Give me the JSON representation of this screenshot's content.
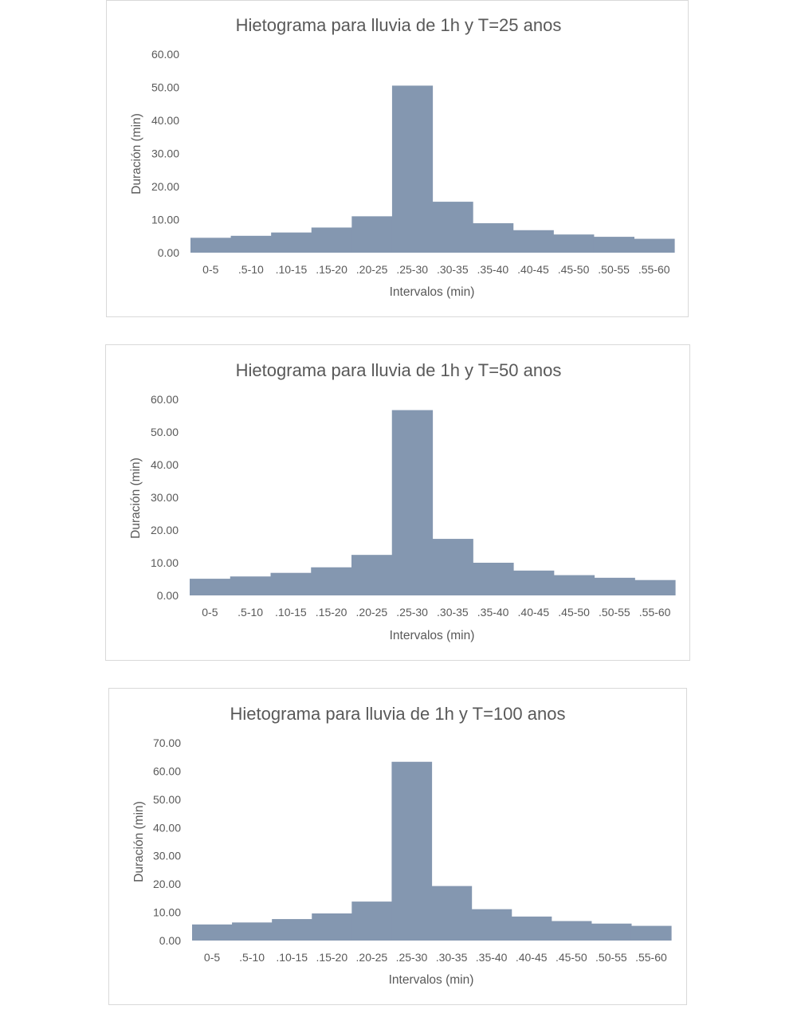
{
  "chart_data": [
    {
      "type": "bar",
      "title": "Hietograma para lluvia de 1h y T=25 anos",
      "xlabel": "Intervalos (min)",
      "ylabel": "Duración (min)",
      "categories": [
        "0-5",
        ".5-10",
        ".10-15",
        ".15-20",
        ".20-25",
        ".25-30",
        ".30-35",
        ".35-40",
        ".40-45",
        ".45-50",
        ".50-55",
        ".55-60"
      ],
      "values": [
        4.5,
        5.1,
        6.1,
        7.6,
        11.0,
        50.5,
        15.4,
        8.9,
        6.8,
        5.5,
        4.8,
        4.2
      ],
      "ylim": [
        0,
        60
      ],
      "yticks": [
        "0.00",
        "10.00",
        "20.00",
        "30.00",
        "40.00",
        "50.00",
        "60.00"
      ],
      "grid": false,
      "legend": "none",
      "bar_color": "#8497b0"
    },
    {
      "type": "bar",
      "title": "Hietograma para lluvia de 1h y T=50 anos",
      "xlabel": "Intervalos (min)",
      "ylabel": "Duración (min)",
      "categories": [
        "0-5",
        ".5-10",
        ".10-15",
        ".15-20",
        ".20-25",
        ".25-30",
        ".30-35",
        ".35-40",
        ".40-45",
        ".45-50",
        ".50-55",
        ".55-60"
      ],
      "values": [
        5.1,
        5.8,
        6.9,
        8.6,
        12.4,
        56.7,
        17.3,
        10.0,
        7.6,
        6.2,
        5.4,
        4.7
      ],
      "ylim": [
        0,
        60
      ],
      "yticks": [
        "0.00",
        "10.00",
        "20.00",
        "30.00",
        "40.00",
        "50.00",
        "60.00"
      ],
      "grid": false,
      "legend": "none",
      "bar_color": "#8497b0"
    },
    {
      "type": "bar",
      "title": "Hietograma para lluvia de 1h y T=100 anos",
      "xlabel": "Intervalos (min)",
      "ylabel": "Duración (min)",
      "categories": [
        "0-5",
        ".5-10",
        ".10-15",
        ".15-20",
        ".20-25",
        ".25-30",
        ".30-35",
        ".35-40",
        ".40-45",
        ".45-50",
        ".50-55",
        ".55-60"
      ],
      "values": [
        5.7,
        6.4,
        7.6,
        9.6,
        13.8,
        63.3,
        19.3,
        11.1,
        8.5,
        6.9,
        6.0,
        5.2
      ],
      "ylim": [
        0,
        70
      ],
      "yticks": [
        "0.00",
        "10.00",
        "20.00",
        "30.00",
        "40.00",
        "50.00",
        "60.00",
        "70.00"
      ],
      "grid": false,
      "legend": "none",
      "bar_color": "#8497b0"
    }
  ]
}
